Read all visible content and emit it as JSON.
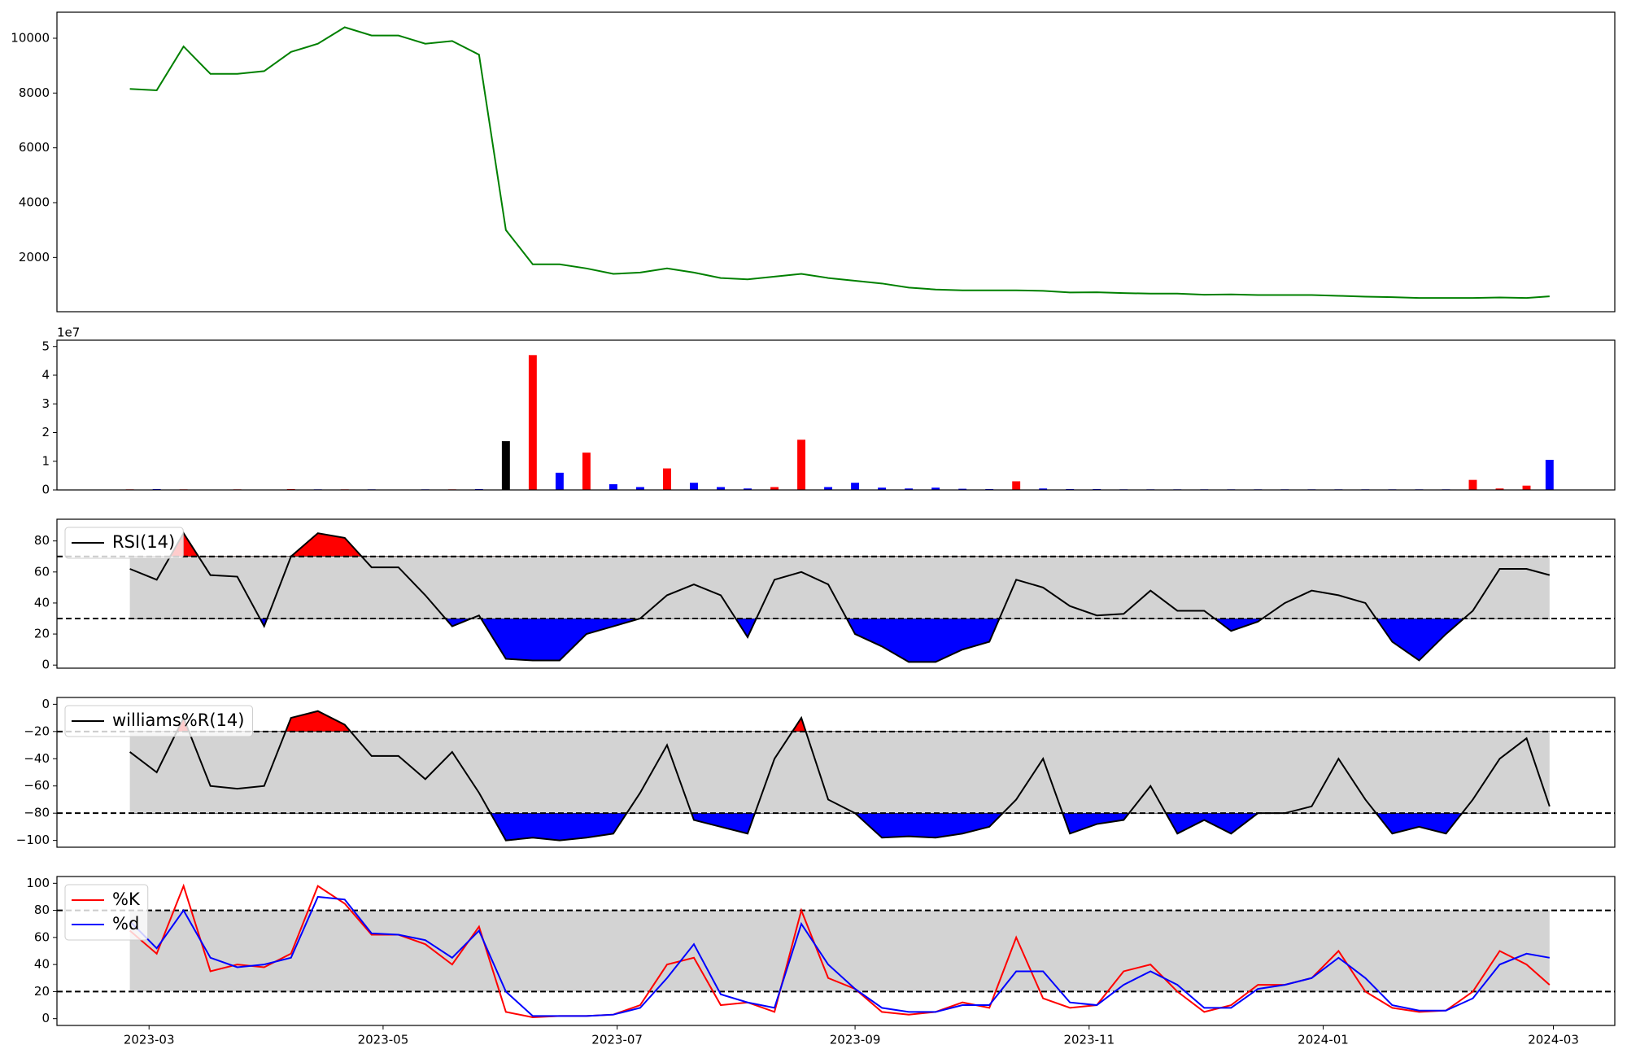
{
  "chart_data": [
    {
      "type": "line",
      "xlim": [
        19393,
        19799
      ],
      "ylim": [
        20,
        10950
      ],
      "yticks": [
        2000,
        4000,
        6000,
        8000,
        10000
      ],
      "x": [
        19412,
        19419,
        19426,
        19433,
        19440,
        19447,
        19454,
        19461,
        19468,
        19475,
        19482,
        19489,
        19496,
        19503,
        19510,
        19517,
        19524,
        19531,
        19538,
        19545,
        19552,
        19559,
        19566,
        19573,
        19580,
        19587,
        19594,
        19601,
        19608,
        19615,
        19622,
        19629,
        19636,
        19643,
        19650,
        19657,
        19664,
        19671,
        19678,
        19685,
        19692,
        19699,
        19706,
        19713,
        19720,
        19727,
        19734,
        19741,
        19748,
        19755,
        19762,
        19769,
        19776,
        19782
      ],
      "series": [
        {
          "color": "green",
          "values": [
            8150,
            8100,
            9700,
            8700,
            8700,
            8800,
            9500,
            9800,
            10400,
            10100,
            10100,
            9800,
            9900,
            9400,
            3000,
            1750,
            1750,
            1600,
            1400,
            1450,
            1600,
            1450,
            1250,
            1200,
            1300,
            1400,
            1250,
            1150,
            1050,
            900,
            830,
            800,
            800,
            800,
            780,
            720,
            730,
            700,
            680,
            680,
            640,
            650,
            630,
            630,
            630,
            600,
            570,
            550,
            520,
            520,
            520,
            540,
            520,
            580
          ]
        }
      ]
    },
    {
      "type": "bar",
      "xlim": [
        19393,
        19799
      ],
      "ylim": [
        0,
        52200000
      ],
      "offset_label": "1e7",
      "yticks": [
        0,
        {
          "value": 10000000,
          "label": "1"
        },
        {
          "value": 20000000,
          "label": "2"
        },
        {
          "value": 30000000,
          "label": "3"
        },
        {
          "value": 40000000,
          "label": "4"
        },
        {
          "value": 50000000,
          "label": "5"
        }
      ],
      "x": [
        19412,
        19419,
        19426,
        19433,
        19440,
        19447,
        19454,
        19461,
        19468,
        19475,
        19482,
        19489,
        19496,
        19503,
        19510,
        19517,
        19524,
        19531,
        19538,
        19545,
        19552,
        19559,
        19566,
        19573,
        19580,
        19587,
        19594,
        19601,
        19608,
        19615,
        19622,
        19629,
        19636,
        19643,
        19650,
        19657,
        19664,
        19671,
        19678,
        19685,
        19692,
        19699,
        19706,
        19713,
        19720,
        19727,
        19734,
        19741,
        19748,
        19755,
        19762,
        19769,
        19776,
        19782
      ],
      "series": [
        {
          "values": [
            200000,
            300000,
            200000,
            100000,
            200000,
            100000,
            300000,
            200000,
            200000,
            200000,
            100000,
            200000,
            200000,
            300000,
            17000000,
            47000000,
            6000000,
            13000000,
            2000000,
            1000000,
            7500000,
            2500000,
            1000000,
            500000,
            1000000,
            17500000,
            1000000,
            2500000,
            800000,
            500000,
            800000,
            400000,
            300000,
            3000000,
            500000,
            300000,
            300000,
            200000,
            200000,
            200000,
            200000,
            200000,
            200000,
            200000,
            200000,
            200000,
            200000,
            200000,
            200000,
            200000,
            3500000,
            500000,
            1500000,
            10500000
          ],
          "colors": [
            "red",
            "blue",
            "red",
            "blue",
            "red",
            "blue",
            "red",
            "blue",
            "red",
            "blue",
            "red",
            "blue",
            "red",
            "blue",
            "black",
            "red",
            "blue",
            "red",
            "blue",
            "blue",
            "red",
            "blue",
            "blue",
            "blue",
            "red",
            "red",
            "blue",
            "blue",
            "blue",
            "blue",
            "blue",
            "blue",
            "blue",
            "red",
            "blue",
            "blue",
            "blue",
            "blue",
            "blue",
            "blue",
            "blue",
            "blue",
            "blue",
            "blue",
            "blue",
            "blue",
            "blue",
            "blue",
            "blue",
            "blue",
            "red",
            "red",
            "red",
            "blue"
          ]
        }
      ]
    },
    {
      "type": "line",
      "xlim": [
        19393,
        19799
      ],
      "ylim": [
        -2,
        94
      ],
      "yticks": [
        0,
        20,
        40,
        60,
        80
      ],
      "legend": "upper left",
      "thresholds": [
        30,
        70
      ],
      "band_color": "#d3d3d3",
      "upper_color": "red",
      "lower_color": "blue",
      "x": [
        19412,
        19419,
        19426,
        19433,
        19440,
        19447,
        19454,
        19461,
        19468,
        19475,
        19482,
        19489,
        19496,
        19503,
        19510,
        19517,
        19524,
        19531,
        19538,
        19545,
        19552,
        19559,
        19566,
        19573,
        19580,
        19587,
        19594,
        19601,
        19608,
        19615,
        19622,
        19629,
        19636,
        19643,
        19650,
        19657,
        19664,
        19671,
        19678,
        19685,
        19692,
        19699,
        19706,
        19713,
        19720,
        19727,
        19734,
        19741,
        19748,
        19755,
        19762,
        19769,
        19776,
        19782
      ],
      "series": [
        {
          "name": "RSI(14)",
          "color": "black",
          "values": [
            62,
            55,
            85,
            58,
            57,
            25,
            70,
            85,
            82,
            63,
            63,
            45,
            25,
            32,
            4,
            3,
            3,
            20,
            25,
            30,
            45,
            52,
            45,
            18,
            55,
            60,
            52,
            20,
            12,
            2,
            2,
            10,
            15,
            55,
            50,
            38,
            32,
            33,
            48,
            35,
            35,
            22,
            28,
            40,
            48,
            45,
            40,
            15,
            3,
            20,
            35,
            62,
            62,
            58
          ]
        }
      ]
    },
    {
      "type": "line",
      "xlim": [
        19393,
        19799
      ],
      "ylim": [
        -105,
        5
      ],
      "legend": "upper left",
      "yticks": [
        {
          "value": -100,
          "label": "−100"
        },
        {
          "value": -80,
          "label": "−80"
        },
        {
          "value": -60,
          "label": "−60"
        },
        {
          "value": -40,
          "label": "−40"
        },
        {
          "value": -20,
          "label": "−20"
        },
        0
      ],
      "thresholds": [
        -80,
        -20
      ],
      "band_color": "#d3d3d3",
      "upper_color": "red",
      "lower_color": "blue",
      "x": [
        19412,
        19419,
        19426,
        19433,
        19440,
        19447,
        19454,
        19461,
        19468,
        19475,
        19482,
        19489,
        19496,
        19503,
        19510,
        19517,
        19524,
        19531,
        19538,
        19545,
        19552,
        19559,
        19566,
        19573,
        19580,
        19587,
        19594,
        19601,
        19608,
        19615,
        19622,
        19629,
        19636,
        19643,
        19650,
        19657,
        19664,
        19671,
        19678,
        19685,
        19692,
        19699,
        19706,
        19713,
        19720,
        19727,
        19734,
        19741,
        19748,
        19755,
        19762,
        19769,
        19776,
        19782
      ],
      "series": [
        {
          "name": "williams%R(14)",
          "color": "black",
          "values": [
            -35,
            -50,
            -10,
            -60,
            -62,
            -60,
            -10,
            -5,
            -15,
            -38,
            -38,
            -55,
            -35,
            -65,
            -100,
            -98,
            -100,
            -98,
            -95,
            -65,
            -30,
            -85,
            -90,
            -95,
            -40,
            -10,
            -70,
            -80,
            -98,
            -97,
            -98,
            -95,
            -90,
            -70,
            -40,
            -95,
            -88,
            -85,
            -60,
            -95,
            -85,
            -95,
            -80,
            -80,
            -75,
            -40,
            -70,
            -95,
            -90,
            -95,
            -70,
            -40,
            -25,
            -75
          ]
        }
      ]
    },
    {
      "type": "line",
      "xlim": [
        19393,
        19799
      ],
      "ylim": [
        -5,
        105
      ],
      "yticks": [
        0,
        20,
        40,
        60,
        80,
        100
      ],
      "legend": "upper left",
      "thresholds": [
        20,
        80
      ],
      "band_color": "#d3d3d3",
      "xticks": [
        {
          "value": 19417,
          "label": "2023-03"
        },
        {
          "value": 19478,
          "label": "2023-05"
        },
        {
          "value": 19539,
          "label": "2023-07"
        },
        {
          "value": 19601,
          "label": "2023-09"
        },
        {
          "value": 19662,
          "label": "2023-11"
        },
        {
          "value": 19723,
          "label": "2024-01"
        },
        {
          "value": 19783,
          "label": "2024-03"
        }
      ],
      "x": [
        19412,
        19419,
        19426,
        19433,
        19440,
        19447,
        19454,
        19461,
        19468,
        19475,
        19482,
        19489,
        19496,
        19503,
        19510,
        19517,
        19524,
        19531,
        19538,
        19545,
        19552,
        19559,
        19566,
        19573,
        19580,
        19587,
        19594,
        19601,
        19608,
        19615,
        19622,
        19629,
        19636,
        19643,
        19650,
        19657,
        19664,
        19671,
        19678,
        19685,
        19692,
        19699,
        19706,
        19713,
        19720,
        19727,
        19734,
        19741,
        19748,
        19755,
        19762,
        19769,
        19776,
        19782
      ],
      "series": [
        {
          "name": "%K",
          "color": "red",
          "values": [
            65,
            48,
            98,
            35,
            40,
            38,
            48,
            98,
            85,
            62,
            62,
            55,
            40,
            68,
            5,
            1,
            2,
            2,
            3,
            10,
            40,
            45,
            10,
            12,
            5,
            80,
            30,
            22,
            5,
            3,
            5,
            12,
            8,
            60,
            15,
            8,
            10,
            35,
            40,
            20,
            5,
            10,
            25,
            25,
            30,
            50,
            20,
            8,
            5,
            6,
            20,
            50,
            40,
            25
          ]
        },
        {
          "name": "%d",
          "color": "blue",
          "values": [
            72,
            52,
            80,
            45,
            38,
            40,
            45,
            90,
            88,
            63,
            62,
            58,
            45,
            65,
            20,
            2,
            2,
            2,
            3,
            8,
            30,
            55,
            18,
            12,
            8,
            70,
            40,
            22,
            8,
            5,
            5,
            10,
            10,
            35,
            35,
            12,
            10,
            25,
            35,
            25,
            8,
            8,
            22,
            25,
            30,
            45,
            30,
            10,
            6,
            6,
            15,
            40,
            48,
            45
          ]
        }
      ]
    }
  ]
}
